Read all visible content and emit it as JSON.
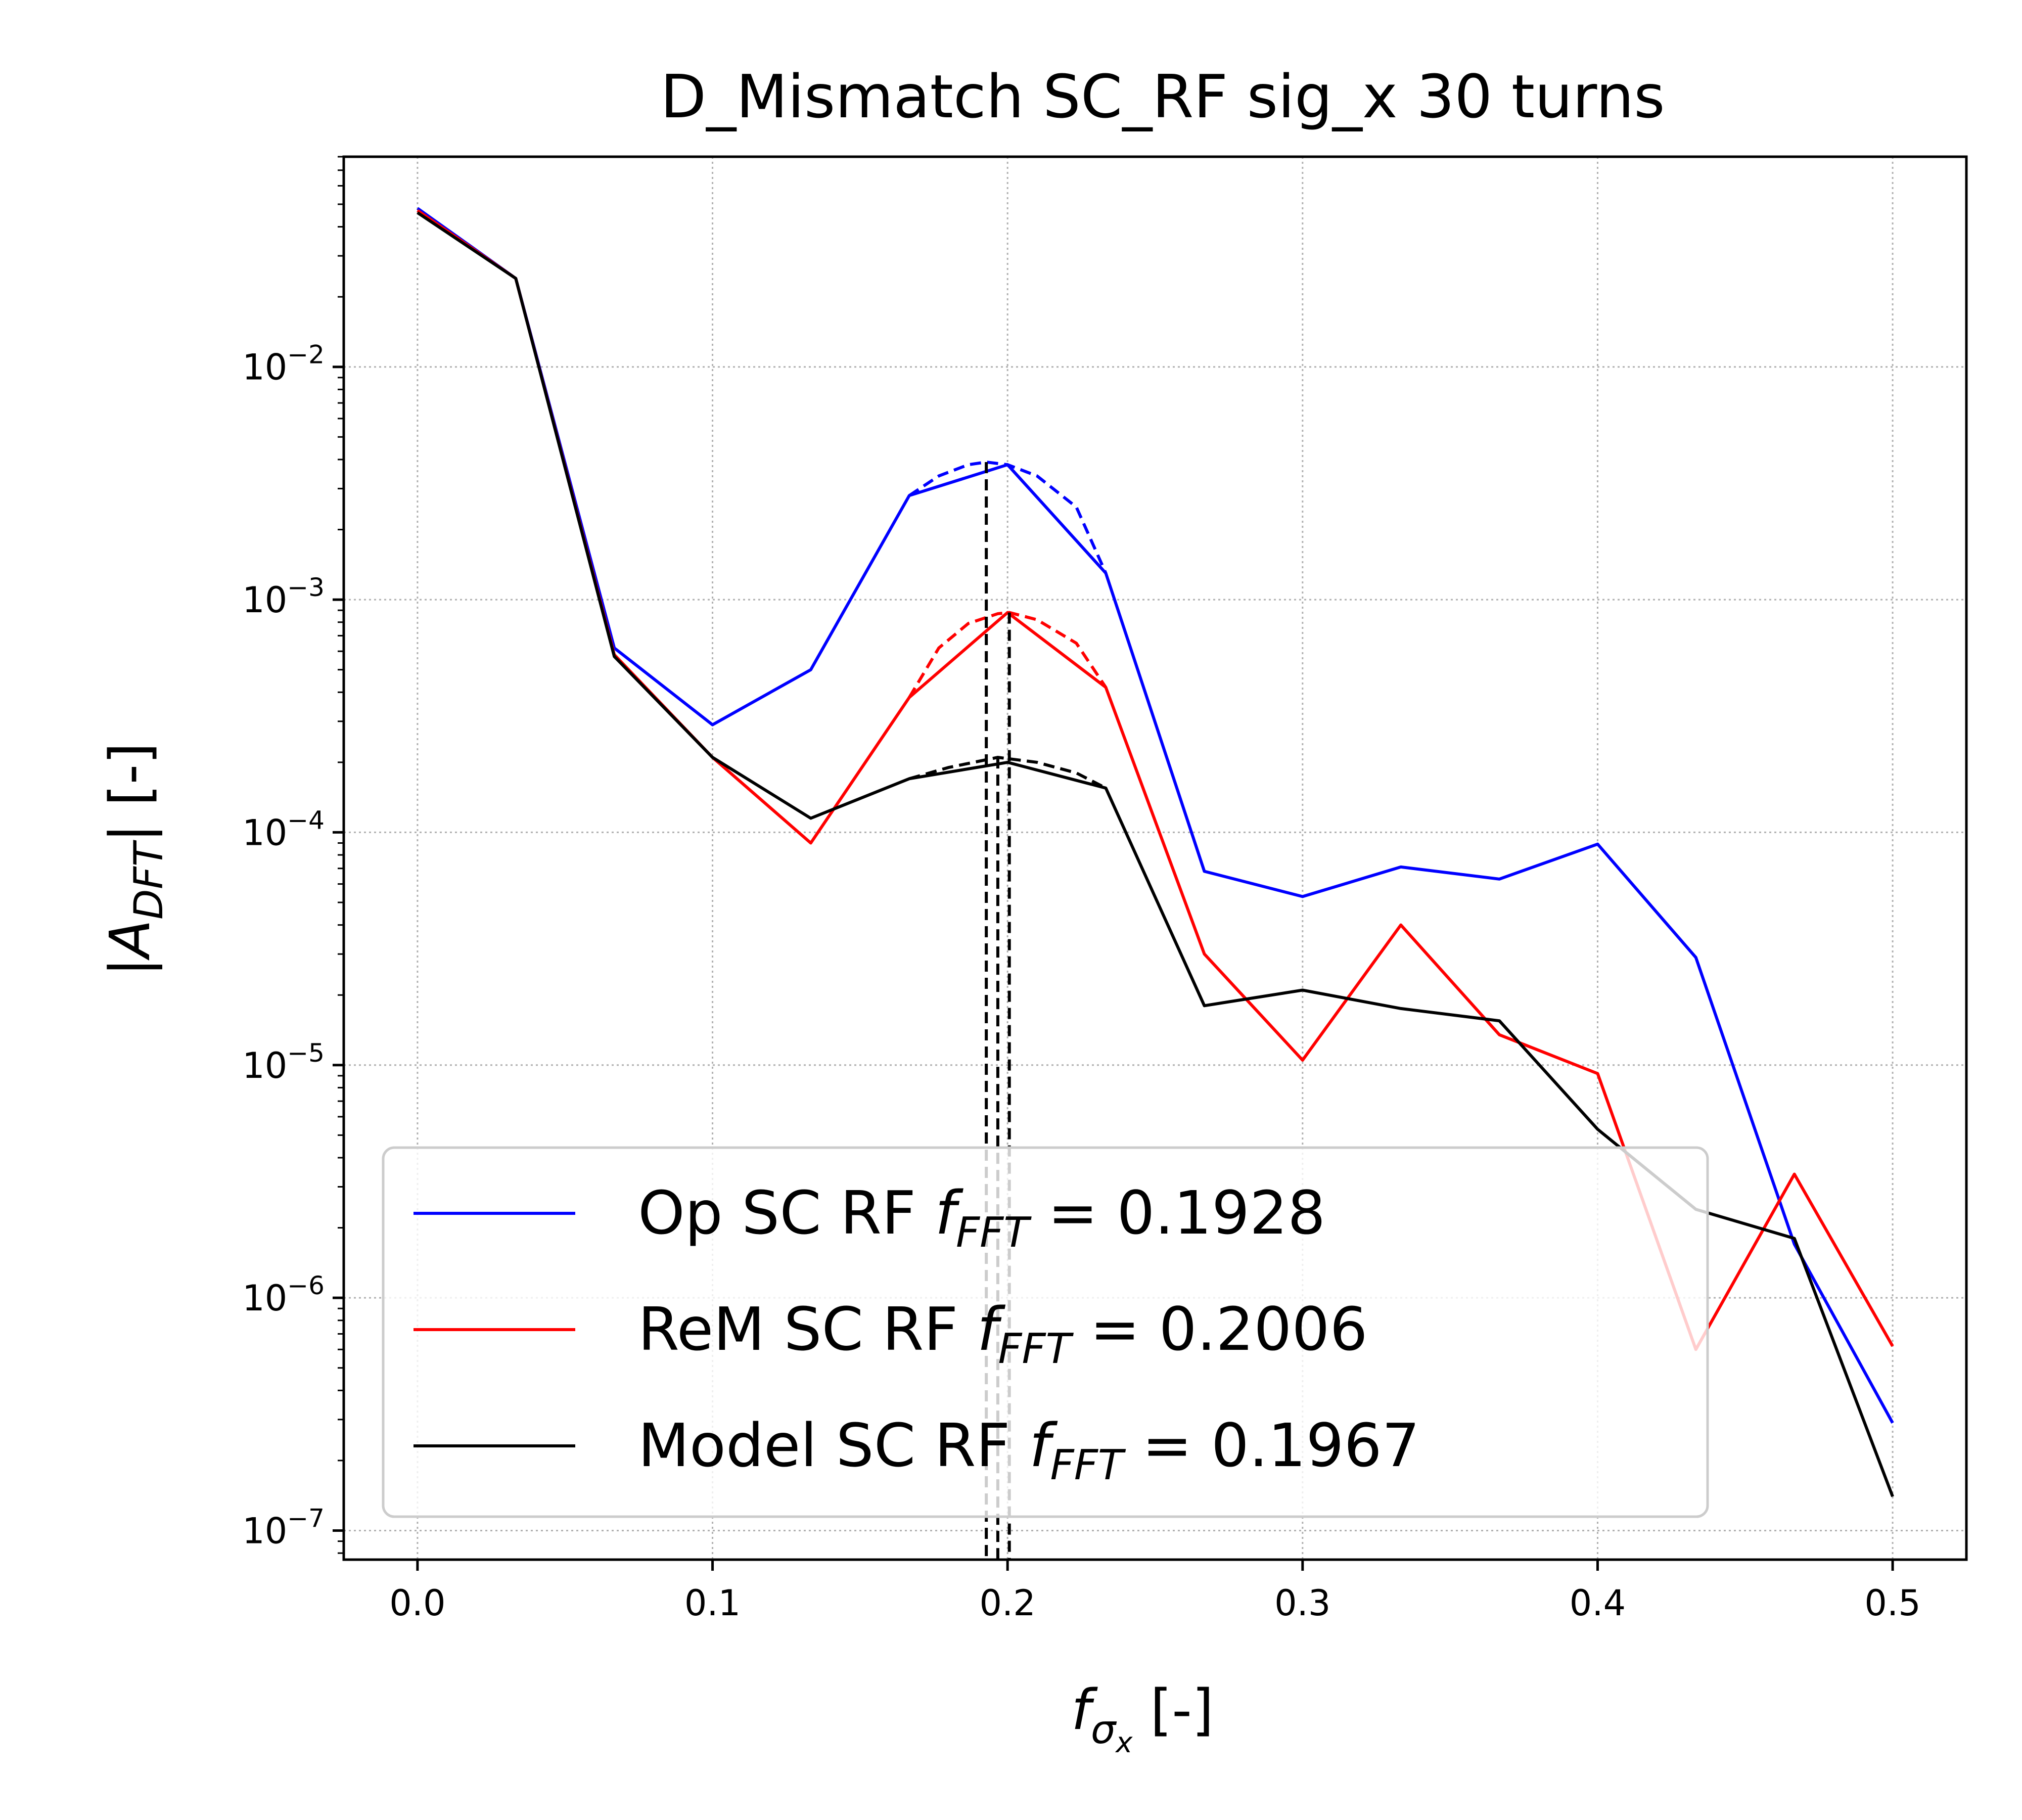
{
  "chart_data": {
    "type": "line",
    "title": "D_Mismatch SC_RF sig_x 30 turns",
    "xlabel": "f",
    "xlabel_sub": "σ",
    "xlabel_subsub": "x",
    "xlabel_suffix": " [-]",
    "ylabel_prefix": "|A",
    "ylabel_sub": "DFT",
    "ylabel_suffix": "| [-]",
    "xscale": "linear",
    "yscale": "log",
    "xlim": [
      -0.025,
      0.525
    ],
    "ylim": [
      7.5e-08,
      0.08
    ],
    "grid": true,
    "legend_position": "lower-left",
    "xticks": [
      {
        "value": 0.0,
        "label": "0.0"
      },
      {
        "value": 0.1,
        "label": "0.1"
      },
      {
        "value": 0.2,
        "label": "0.2"
      },
      {
        "value": 0.3,
        "label": "0.3"
      },
      {
        "value": 0.4,
        "label": "0.4"
      },
      {
        "value": 0.5,
        "label": "0.5"
      }
    ],
    "yticks": [
      {
        "value": 0.01,
        "base": "10",
        "exp": "−2"
      },
      {
        "value": 0.001,
        "base": "10",
        "exp": "−3"
      },
      {
        "value": 0.0001,
        "base": "10",
        "exp": "−4"
      },
      {
        "value": 1e-05,
        "base": "10",
        "exp": "−5"
      },
      {
        "value": 1e-06,
        "base": "10",
        "exp": "−6"
      },
      {
        "value": 1e-07,
        "base": "10",
        "exp": "−7"
      }
    ],
    "x": [
      0.0,
      0.0333,
      0.0667,
      0.1,
      0.1333,
      0.1667,
      0.2,
      0.2333,
      0.2667,
      0.3,
      0.3333,
      0.3667,
      0.4,
      0.4333,
      0.4667,
      0.5
    ],
    "series": [
      {
        "name": "Op SC RF",
        "legend_value": "0.1928",
        "color": "#0000ff",
        "values": [
          0.048,
          0.024,
          0.00062,
          0.00029,
          0.0005,
          0.0028,
          0.0038,
          0.0013,
          6.8e-05,
          5.3e-05,
          7.1e-05,
          6.3e-05,
          8.9e-05,
          2.9e-05,
          1.7e-06,
          2.9e-07
        ],
        "peak_fit": {
          "x": [
            0.1667,
            0.1767,
            0.1867,
            0.1928,
            0.2,
            0.21,
            0.2233,
            0.2333
          ],
          "y": [
            0.0028,
            0.0034,
            0.0038,
            0.0039,
            0.0038,
            0.0034,
            0.0025,
            0.0013
          ]
        },
        "peak_freq": 0.1928
      },
      {
        "name": "ReM SC RF",
        "legend_value": "0.2006",
        "color": "#ff0000",
        "values": [
          0.047,
          0.024,
          0.00058,
          0.00021,
          9e-05,
          0.00038,
          0.00088,
          0.00042,
          3e-05,
          1.05e-05,
          4e-05,
          1.35e-05,
          9.2e-06,
          6e-07,
          3.4e-06,
          6.2e-07
        ],
        "peak_fit": {
          "x": [
            0.1667,
            0.1767,
            0.1867,
            0.1967,
            0.2006,
            0.21,
            0.2233,
            0.2333
          ],
          "y": [
            0.00038,
            0.00062,
            0.00079,
            0.00087,
            0.00088,
            0.00082,
            0.00065,
            0.00042
          ]
        },
        "peak_freq": 0.2006
      },
      {
        "name": "Model SC RF",
        "legend_value": "0.1967",
        "color": "#000000",
        "values": [
          0.046,
          0.024,
          0.00057,
          0.00021,
          0.000115,
          0.00017,
          0.0002,
          0.000155,
          1.8e-05,
          2.1e-05,
          1.75e-05,
          1.55e-05,
          5.3e-06,
          2.4e-06,
          1.8e-06,
          1.4e-07
        ],
        "peak_fit": {
          "x": [
            0.1667,
            0.18,
            0.1967,
            0.21,
            0.2233,
            0.2333
          ],
          "y": [
            0.00017,
            0.00019,
            0.00021,
            0.0002,
            0.00018,
            0.000155
          ]
        },
        "peak_freq": 0.1967
      }
    ],
    "legend_label_mid": "f",
    "legend_label_sub": "FFT",
    "legend_label_eq": " = "
  }
}
